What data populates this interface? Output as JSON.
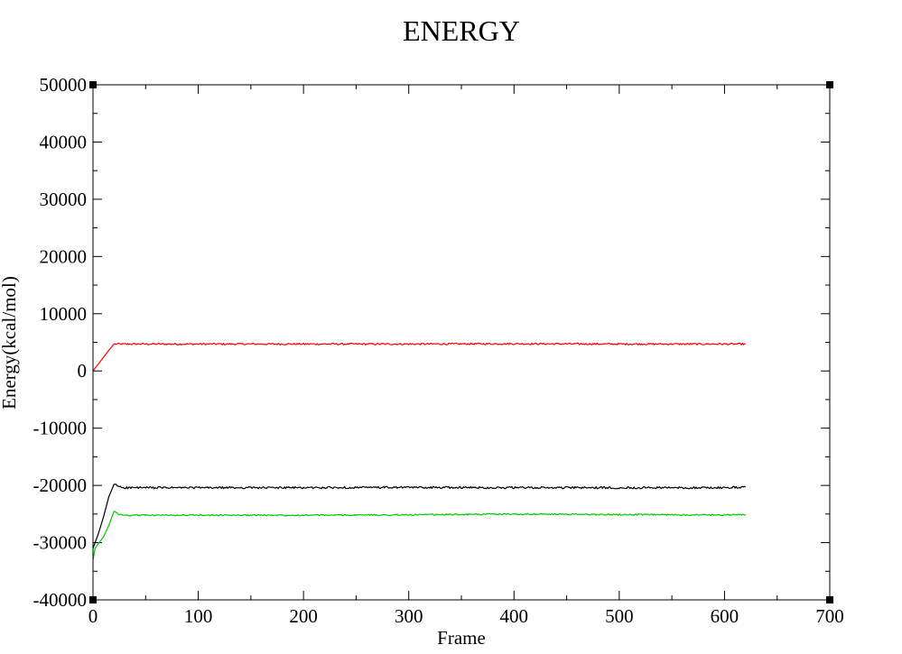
{
  "chart_data": {
    "type": "line",
    "title": "ENERGY",
    "xlabel": "Frame",
    "ylabel": "Energy(kcal/mol)",
    "xlim": [
      0,
      700
    ],
    "ylim": [
      -40000,
      50000
    ],
    "x_major_ticks": [
      0,
      100,
      200,
      300,
      400,
      500,
      600,
      700
    ],
    "x_tick_labels": [
      "0",
      "100",
      "200",
      "300",
      "400",
      "500",
      "600",
      "700"
    ],
    "x_minor_step": 50,
    "y_major_ticks": [
      -40000,
      -30000,
      -20000,
      -10000,
      0,
      10000,
      20000,
      30000,
      40000,
      50000
    ],
    "y_tick_labels": [
      "-40000",
      "-30000",
      "-20000",
      "-10000",
      "0",
      "10000",
      "20000",
      "30000",
      "40000",
      "50000"
    ],
    "y_minor_step": 5000,
    "grid": false,
    "legend": "none",
    "series": [
      {
        "color": "#ff0000",
        "x": [
          0,
          5,
          10,
          15,
          20,
          50,
          100,
          200,
          300,
          400,
          500,
          600,
          620
        ],
        "y": [
          0,
          1200,
          2400,
          3600,
          4700,
          4700,
          4700,
          4700,
          4700,
          4750,
          4700,
          4700,
          4700
        ],
        "noise": 150
      },
      {
        "color": "#000000",
        "x": [
          0,
          5,
          10,
          15,
          20,
          25,
          30,
          50,
          100,
          200,
          300,
          400,
          500,
          600,
          620
        ],
        "y": [
          -31000,
          -28500,
          -25500,
          -22000,
          -19800,
          -20200,
          -20400,
          -20400,
          -20400,
          -20400,
          -20350,
          -20400,
          -20400,
          -20400,
          -20300
        ],
        "noise": 180
      },
      {
        "color": "#00cc00",
        "x": [
          0,
          2,
          5,
          10,
          15,
          20,
          25,
          30,
          50,
          100,
          200,
          300,
          400,
          500,
          600,
          620
        ],
        "y": [
          -33000,
          -31000,
          -30200,
          -29000,
          -27000,
          -24500,
          -25100,
          -25200,
          -25200,
          -25200,
          -25200,
          -25150,
          -25000,
          -25100,
          -25150,
          -25100
        ],
        "noise": 120
      }
    ]
  }
}
